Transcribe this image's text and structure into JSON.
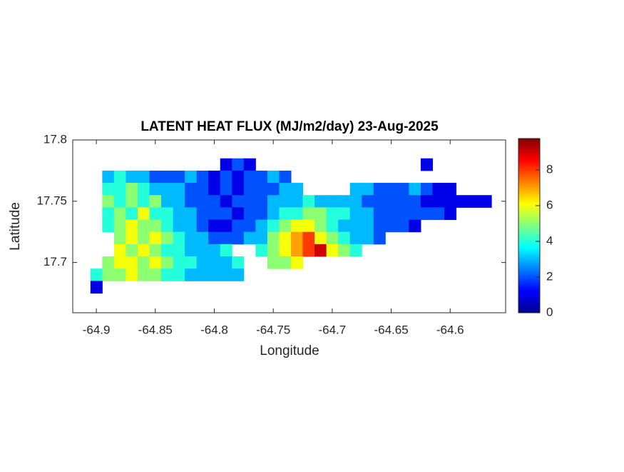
{
  "chart_data": {
    "type": "map",
    "title": "LATENT HEAT FLUX (MJ/m2/day) 23-Aug-2025",
    "xlabel": "Longitude",
    "ylabel": "Latitude",
    "xlim": [
      -64.92,
      -64.553
    ],
    "ylim": [
      17.659,
      17.8
    ],
    "xticks": [
      -64.9,
      -64.85,
      -64.8,
      -64.75,
      -64.7,
      -64.65,
      -64.6
    ],
    "yticks": [
      17.7,
      17.75,
      17.8
    ],
    "clim": [
      0,
      9.76
    ],
    "cticks": [
      0,
      2,
      4,
      6,
      8
    ],
    "colormap": "jet",
    "lon": [
      -64.9,
      -64.89,
      -64.88,
      -64.87,
      -64.86,
      -64.85,
      -64.84,
      -64.83,
      -64.82,
      -64.81,
      -64.8,
      -64.79,
      -64.78,
      -64.77,
      -64.76,
      -64.75,
      -64.74,
      -64.73,
      -64.72,
      -64.71,
      -64.7,
      -64.69,
      -64.68,
      -64.67,
      -64.66,
      -64.65,
      -64.64,
      -64.63,
      -64.62,
      -64.61,
      -64.6,
      -64.59,
      -64.58,
      -64.57
    ],
    "lat": [
      17.78,
      17.77,
      17.76,
      17.75,
      17.74,
      17.73,
      17.72,
      17.71,
      17.7,
      17.69,
      17.68
    ],
    "values": [
      [
        null,
        null,
        null,
        null,
        null,
        null,
        null,
        null,
        null,
        null,
        null,
        1,
        2,
        1,
        null,
        null,
        null,
        null,
        null,
        null,
        null,
        null,
        null,
        null,
        null,
        null,
        null,
        null,
        1,
        null,
        null,
        null,
        null,
        null
      ],
      [
        null,
        3,
        4,
        3,
        3,
        2,
        2,
        2,
        3,
        2,
        1,
        2,
        1,
        2,
        2,
        3,
        2,
        null,
        null,
        null,
        null,
        null,
        null,
        null,
        null,
        null,
        null,
        null,
        null,
        null,
        null,
        null,
        null,
        null
      ],
      [
        null,
        4,
        4,
        5,
        4,
        3,
        3,
        3,
        2,
        2,
        1,
        2,
        1,
        2,
        2,
        2,
        3,
        3,
        null,
        null,
        null,
        null,
        3,
        3,
        2,
        2,
        2,
        3,
        2,
        1,
        1,
        null,
        null,
        null
      ],
      [
        null,
        5,
        4,
        5,
        4,
        5,
        3,
        3,
        2,
        2,
        2,
        1,
        2,
        2,
        2,
        3,
        3,
        3,
        4,
        3,
        3,
        3,
        3,
        2,
        2,
        2,
        2,
        2,
        1,
        1,
        1,
        1,
        1,
        1
      ],
      [
        null,
        4,
        5,
        4,
        6,
        4,
        4,
        3,
        3,
        2,
        2,
        2,
        1,
        2,
        2,
        3,
        4,
        4,
        5,
        5,
        4,
        4,
        3,
        3,
        2,
        2,
        2,
        2,
        2,
        2,
        1,
        null,
        null,
        null
      ],
      [
        null,
        4,
        5,
        6,
        5,
        5,
        4,
        3,
        3,
        2,
        1,
        1,
        2,
        2,
        3,
        4,
        5,
        6,
        6,
        5,
        4,
        3,
        3,
        3,
        2,
        2,
        2,
        1,
        null,
        null,
        null,
        null,
        null,
        null
      ],
      [
        null,
        null,
        5,
        6,
        5,
        6,
        5,
        4,
        3,
        3,
        2,
        2,
        2,
        3,
        3,
        5,
        6,
        7,
        8,
        6,
        5,
        4,
        3,
        3,
        2,
        null,
        null,
        null,
        null,
        null,
        null,
        null,
        null,
        null
      ],
      [
        null,
        null,
        6,
        5,
        6,
        5,
        4,
        4,
        3,
        3,
        3,
        4,
        null,
        null,
        4,
        5,
        6,
        7,
        8,
        9,
        6,
        5,
        4,
        null,
        null,
        null,
        null,
        null,
        null,
        null,
        null,
        null,
        null,
        null
      ],
      [
        null,
        5,
        6,
        6,
        5,
        6,
        5,
        4,
        4,
        3,
        3,
        3,
        4,
        null,
        null,
        5,
        5,
        6,
        null,
        null,
        null,
        null,
        null,
        null,
        null,
        null,
        null,
        null,
        null,
        null,
        null,
        null,
        null,
        null
      ],
      [
        4,
        5,
        5,
        6,
        5,
        5,
        4,
        4,
        3,
        3,
        3,
        3,
        3,
        null,
        null,
        null,
        null,
        null,
        null,
        null,
        null,
        null,
        null,
        null,
        null,
        null,
        null,
        null,
        null,
        null,
        null,
        null,
        null,
        null
      ],
      [
        1,
        null,
        null,
        null,
        null,
        null,
        null,
        null,
        null,
        null,
        null,
        null,
        null,
        null,
        null,
        null,
        null,
        null,
        null,
        null,
        null,
        null,
        null,
        null,
        null,
        null,
        null,
        null,
        null,
        null,
        null,
        null,
        null,
        null
      ]
    ]
  }
}
